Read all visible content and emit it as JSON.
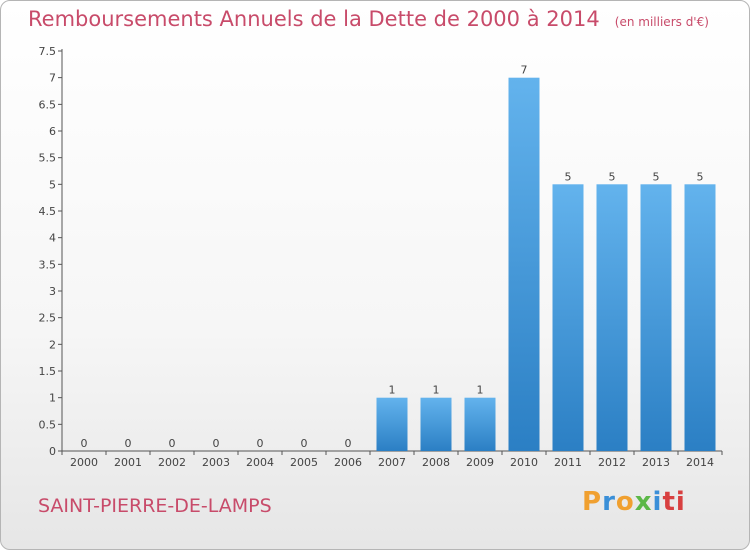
{
  "header": {
    "title": "Remboursements Annuels de la Dette de 2000 à 2014",
    "unit": "(en milliers d'€)"
  },
  "footer": {
    "place": "SAINT-PIERRE-DE-LAMPS",
    "brand": [
      "P",
      "r",
      "o",
      "x",
      "i",
      "ti"
    ]
  },
  "colors": {
    "bar": "#3c96da",
    "bar_light": "#5fb0ea",
    "title": "#c84b6a"
  },
  "chart_data": {
    "type": "bar",
    "title": "Remboursements Annuels de la Dette de 2000 à 2014",
    "subtitle": "(en milliers d'€)",
    "xlabel": "",
    "ylabel": "",
    "categories": [
      "2000",
      "2001",
      "2002",
      "2003",
      "2004",
      "2005",
      "2006",
      "2007",
      "2008",
      "2009",
      "2010",
      "2011",
      "2012",
      "2013",
      "2014"
    ],
    "values": [
      0,
      0,
      0,
      0,
      0,
      0,
      0,
      1,
      1,
      1,
      7,
      5,
      5,
      5,
      5
    ],
    "value_labels": [
      "0",
      "0",
      "0",
      "0",
      "0",
      "0",
      "0",
      "1",
      "1",
      "1",
      "7",
      "5",
      "5",
      "5",
      "5"
    ],
    "ylim": [
      0,
      7.5
    ],
    "yticks": [
      0,
      0.5,
      1,
      1.5,
      2,
      2.5,
      3,
      3.5,
      4,
      4.5,
      5,
      5.5,
      6,
      6.5,
      7,
      7.5
    ],
    "ytick_labels": [
      "0",
      "0.5",
      "1",
      "1.5",
      "2",
      "2.5",
      "3",
      "3.5",
      "4",
      "4.5",
      "5",
      "5.5",
      "6",
      "6.5",
      "7",
      "7.5"
    ],
    "grid": false,
    "legend": "none"
  }
}
